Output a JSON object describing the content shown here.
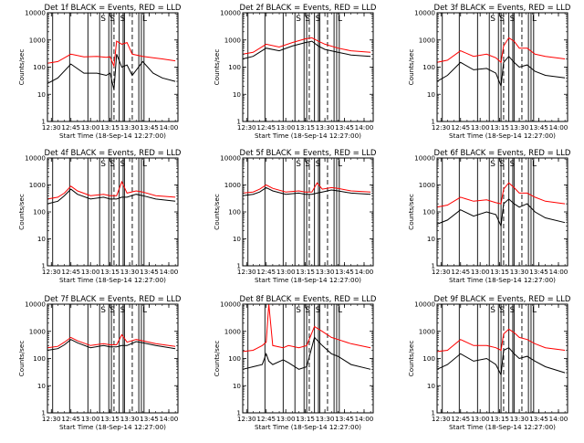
{
  "figure": {
    "colors": {
      "events": "#000000",
      "lld": "#ff0000",
      "axes": "#000000",
      "background": "#ffffff"
    },
    "layout": "3x3 grid of detector light curves"
  },
  "chart_data": [
    {
      "type": "line",
      "title": "Det 1f BLACK = Events, RED = LLD",
      "xlabel": "Start Time (18-Sep-14 12:27:00)",
      "ylabel": "Counts/sec",
      "xlim": [
        "12:27",
        "14:07"
      ],
      "ylim": [
        1,
        10000
      ],
      "yscale": "log",
      "xticks": [
        "12:30",
        "12:45",
        "13:00",
        "13:15",
        "13:30",
        "13:45",
        "14:00"
      ],
      "yticks": [
        "1",
        "10",
        "100",
        "1000",
        "10000"
      ],
      "annotations": [
        "S",
        "S",
        "S",
        "L"
      ],
      "series": [
        {
          "color": "#ff0000",
          "time": [
            "12:27",
            "12:35",
            "12:45",
            "12:55",
            "13:05",
            "13:12",
            "13:15",
            "13:18",
            "13:20",
            "13:24",
            "13:28",
            "13:32",
            "13:40",
            "13:48",
            "13:55",
            "14:05"
          ],
          "values": [
            140,
            160,
            300,
            240,
            250,
            230,
            240,
            110,
            900,
            700,
            800,
            300,
            250,
            220,
            200,
            170
          ]
        },
        {
          "color": "#000000",
          "time": [
            "12:27",
            "12:35",
            "12:45",
            "12:55",
            "13:05",
            "13:12",
            "13:15",
            "13:18",
            "13:20",
            "13:24",
            "13:28",
            "13:32",
            "13:40",
            "13:48",
            "13:55",
            "14:05"
          ],
          "values": [
            25,
            40,
            130,
            60,
            60,
            50,
            60,
            15,
            300,
            100,
            120,
            50,
            160,
            60,
            40,
            30
          ]
        }
      ]
    },
    {
      "type": "line",
      "title": "Det 2f BLACK = Events, RED = LLD",
      "xlabel": "Start Time (18-Sep-14 12:27:00)",
      "ylabel": "Counts/sec",
      "xlim": [
        "12:27",
        "14:07"
      ],
      "ylim": [
        1,
        10000
      ],
      "yscale": "log",
      "xticks": [
        "12:30",
        "12:45",
        "13:00",
        "13:15",
        "13:30",
        "13:45",
        "14:00"
      ],
      "yticks": [
        "1",
        "10",
        "100",
        "1000",
        "10000"
      ],
      "annotations": [
        "S",
        "S",
        "S",
        "L"
      ],
      "series": [
        {
          "color": "#ff0000",
          "time": [
            "12:27",
            "12:35",
            "12:45",
            "12:55",
            "13:05",
            "13:15",
            "13:20",
            "13:25",
            "13:30",
            "13:40",
            "13:50",
            "14:05"
          ],
          "values": [
            300,
            350,
            700,
            550,
            800,
            1100,
            1200,
            900,
            700,
            500,
            400,
            350
          ]
        },
        {
          "color": "#000000",
          "time": [
            "12:27",
            "12:35",
            "12:45",
            "12:55",
            "13:05",
            "13:15",
            "13:20",
            "13:25",
            "13:30",
            "13:40",
            "13:50",
            "14:05"
          ],
          "values": [
            200,
            250,
            500,
            400,
            600,
            800,
            900,
            600,
            450,
            350,
            280,
            250
          ]
        }
      ]
    },
    {
      "type": "line",
      "title": "Det 3f BLACK = Events, RED = LLD",
      "xlabel": "Start Time (18-Sep-14 12:27:00)",
      "ylabel": "Counts/sec",
      "xlim": [
        "12:27",
        "14:07"
      ],
      "ylim": [
        1,
        10000
      ],
      "yscale": "log",
      "xticks": [
        "12:30",
        "12:45",
        "13:00",
        "13:15",
        "13:30",
        "13:45",
        "14:00"
      ],
      "yticks": [
        "1",
        "10",
        "100",
        "1000",
        "10000"
      ],
      "annotations": [
        "S",
        "S",
        "S",
        "L"
      ],
      "series": [
        {
          "color": "#ff0000",
          "time": [
            "12:27",
            "12:35",
            "12:45",
            "12:55",
            "13:05",
            "13:12",
            "13:16",
            "13:18",
            "13:22",
            "13:26",
            "13:30",
            "13:36",
            "13:42",
            "13:50",
            "14:05"
          ],
          "values": [
            150,
            180,
            400,
            250,
            300,
            220,
            150,
            600,
            1200,
            900,
            500,
            500,
            300,
            250,
            200
          ]
        },
        {
          "color": "#000000",
          "time": [
            "12:27",
            "12:35",
            "12:45",
            "12:55",
            "13:05",
            "13:12",
            "13:16",
            "13:18",
            "13:22",
            "13:26",
            "13:30",
            "13:36",
            "13:42",
            "13:50",
            "14:05"
          ],
          "values": [
            30,
            50,
            150,
            80,
            90,
            60,
            20,
            150,
            250,
            150,
            100,
            120,
            70,
            50,
            40
          ]
        }
      ]
    },
    {
      "type": "line",
      "title": "Det 4f BLACK = Events, RED = LLD",
      "xlabel": "Start Time (18-Sep-14 12:27:00)",
      "ylabel": "Counts/sec",
      "xlim": [
        "12:27",
        "14:07"
      ],
      "ylim": [
        1,
        10000
      ],
      "yscale": "log",
      "xticks": [
        "12:30",
        "12:45",
        "13:00",
        "13:15",
        "13:30",
        "13:45",
        "14:00"
      ],
      "yticks": [
        "1",
        "10",
        "100",
        "1000",
        "10000"
      ],
      "annotations": [
        "S",
        "S",
        "S",
        "L"
      ],
      "series": [
        {
          "color": "#ff0000",
          "time": [
            "12:27",
            "12:35",
            "12:40",
            "12:45",
            "12:50",
            "13:00",
            "13:10",
            "13:15",
            "13:20",
            "13:24",
            "13:28",
            "13:35",
            "13:40",
            "13:50",
            "14:05"
          ],
          "values": [
            300,
            350,
            500,
            900,
            600,
            400,
            450,
            400,
            400,
            1300,
            500,
            600,
            550,
            400,
            350
          ]
        },
        {
          "color": "#000000",
          "time": [
            "12:27",
            "12:35",
            "12:40",
            "12:45",
            "12:50",
            "13:00",
            "13:10",
            "13:15",
            "13:20",
            "13:24",
            "13:28",
            "13:35",
            "13:40",
            "13:50",
            "14:05"
          ],
          "values": [
            200,
            250,
            400,
            700,
            450,
            300,
            350,
            300,
            300,
            350,
            350,
            450,
            400,
            300,
            250
          ]
        }
      ]
    },
    {
      "type": "line",
      "title": "Det 5f BLACK = Events, RED = LLD",
      "xlabel": "Start Time (18-Sep-14 12:27:00)",
      "ylabel": "Counts/sec",
      "xlim": [
        "12:27",
        "14:07"
      ],
      "ylim": [
        1,
        10000
      ],
      "yscale": "log",
      "xticks": [
        "12:30",
        "12:45",
        "13:00",
        "13:15",
        "13:30",
        "13:45",
        "14:00"
      ],
      "yticks": [
        "1",
        "10",
        "100",
        "1000",
        "10000"
      ],
      "annotations": [
        "S",
        "S",
        "S",
        "L"
      ],
      "series": [
        {
          "color": "#ff0000",
          "time": [
            "12:27",
            "12:35",
            "12:40",
            "12:45",
            "12:50",
            "13:00",
            "13:10",
            "13:15",
            "13:20",
            "13:24",
            "13:28",
            "13:35",
            "13:40",
            "13:50",
            "14:05"
          ],
          "values": [
            500,
            550,
            700,
            1000,
            750,
            550,
            600,
            550,
            550,
            1200,
            700,
            800,
            750,
            600,
            550
          ]
        },
        {
          "color": "#000000",
          "time": [
            "12:27",
            "12:35",
            "12:40",
            "12:45",
            "12:50",
            "13:00",
            "13:10",
            "13:15",
            "13:20",
            "13:24",
            "13:28",
            "13:35",
            "13:40",
            "13:50",
            "14:05"
          ],
          "values": [
            400,
            450,
            550,
            800,
            600,
            450,
            500,
            450,
            450,
            500,
            550,
            650,
            600,
            500,
            450
          ]
        }
      ]
    },
    {
      "type": "line",
      "title": "Det 6f BLACK = Events, RED = LLD",
      "xlabel": "Start Time (18-Sep-14 12:27:00)",
      "ylabel": "Counts/sec",
      "xlim": [
        "12:27",
        "14:07"
      ],
      "ylim": [
        1,
        10000
      ],
      "yscale": "log",
      "xticks": [
        "12:30",
        "12:45",
        "13:00",
        "13:15",
        "13:30",
        "13:45",
        "14:00"
      ],
      "yticks": [
        "1",
        "10",
        "100",
        "1000",
        "10000"
      ],
      "annotations": [
        "S",
        "S",
        "S",
        "L"
      ],
      "series": [
        {
          "color": "#ff0000",
          "time": [
            "12:27",
            "12:35",
            "12:45",
            "12:55",
            "13:05",
            "13:12",
            "13:16",
            "13:18",
            "13:22",
            "13:26",
            "13:30",
            "13:36",
            "13:42",
            "13:50",
            "14:05"
          ],
          "values": [
            150,
            180,
            350,
            250,
            280,
            220,
            200,
            700,
            1200,
            800,
            500,
            500,
            350,
            250,
            200
          ]
        },
        {
          "color": "#000000",
          "time": [
            "12:27",
            "12:35",
            "12:45",
            "12:55",
            "13:05",
            "13:12",
            "13:16",
            "13:18",
            "13:22",
            "13:26",
            "13:30",
            "13:36",
            "13:42",
            "13:50",
            "14:05"
          ],
          "values": [
            35,
            50,
            120,
            70,
            100,
            80,
            30,
            200,
            300,
            200,
            150,
            200,
            100,
            60,
            40
          ]
        }
      ]
    },
    {
      "type": "line",
      "title": "Det 7f BLACK = Events, RED = LLD",
      "xlabel": "Start Time (18-Sep-14 12:27:00)",
      "ylabel": "Counts/sec",
      "xlim": [
        "12:27",
        "14:07"
      ],
      "ylim": [
        1,
        10000
      ],
      "yscale": "log",
      "xticks": [
        "12:30",
        "12:45",
        "13:00",
        "13:15",
        "13:30",
        "13:45",
        "14:00"
      ],
      "yticks": [
        "1",
        "10",
        "100",
        "1000",
        "10000"
      ],
      "annotations": [
        "S",
        "S",
        "S",
        "L"
      ],
      "series": [
        {
          "color": "#ff0000",
          "time": [
            "12:27",
            "12:35",
            "12:40",
            "12:45",
            "12:50",
            "13:00",
            "13:10",
            "13:15",
            "13:20",
            "13:24",
            "13:28",
            "13:35",
            "13:40",
            "13:50",
            "14:05"
          ],
          "values": [
            250,
            280,
            400,
            600,
            450,
            300,
            350,
            320,
            320,
            750,
            400,
            500,
            450,
            350,
            280
          ]
        },
        {
          "color": "#000000",
          "time": [
            "12:27",
            "12:35",
            "12:40",
            "12:45",
            "12:50",
            "13:00",
            "13:10",
            "13:15",
            "13:20",
            "13:24",
            "13:28",
            "13:35",
            "13:40",
            "13:50",
            "14:05"
          ],
          "values": [
            200,
            230,
            320,
            500,
            380,
            250,
            300,
            270,
            270,
            300,
            300,
            420,
            380,
            300,
            230
          ]
        }
      ]
    },
    {
      "type": "line",
      "title": "Det 8f BLACK = Events, RED = LLD",
      "xlabel": "Start Time (18-Sep-14 12:27:00)",
      "ylabel": "Counts/sec",
      "xlim": [
        "12:27",
        "14:07"
      ],
      "ylim": [
        1,
        10000
      ],
      "yscale": "log",
      "xticks": [
        "12:30",
        "12:45",
        "13:00",
        "13:15",
        "13:30",
        "13:45",
        "14:00"
      ],
      "yticks": [
        "1",
        "10",
        "100",
        "1000",
        "10000"
      ],
      "annotations": [
        "S",
        "S",
        "S",
        "L"
      ],
      "series": [
        {
          "color": "#ff0000",
          "time": [
            "12:27",
            "12:35",
            "12:42",
            "12:45",
            "12:47",
            "12:50",
            "12:58",
            "13:02",
            "13:10",
            "13:16",
            "13:22",
            "13:28",
            "13:35",
            "13:40",
            "13:50",
            "14:05"
          ],
          "values": [
            180,
            200,
            300,
            400,
            10000,
            300,
            250,
            300,
            250,
            300,
            1500,
            1000,
            600,
            500,
            350,
            250
          ]
        },
        {
          "color": "#000000",
          "time": [
            "12:27",
            "12:35",
            "12:42",
            "12:45",
            "12:47",
            "12:50",
            "12:58",
            "13:02",
            "13:10",
            "13:16",
            "13:22",
            "13:28",
            "13:35",
            "13:40",
            "13:50",
            "14:05"
          ],
          "values": [
            40,
            50,
            60,
            150,
            80,
            60,
            90,
            70,
            40,
            50,
            600,
            300,
            150,
            120,
            60,
            40
          ]
        }
      ]
    },
    {
      "type": "line",
      "title": "Det 9f BLACK = Events, RED = LLD",
      "xlabel": "Start Time (18-Sep-14 12:27:00)",
      "ylabel": "Counts/sec",
      "xlim": [
        "12:27",
        "14:07"
      ],
      "ylim": [
        1,
        10000
      ],
      "yscale": "log",
      "xticks": [
        "12:30",
        "12:45",
        "13:00",
        "13:15",
        "13:30",
        "13:45",
        "14:00"
      ],
      "yticks": [
        "1",
        "10",
        "100",
        "1000",
        "10000"
      ],
      "annotations": [
        "S",
        "S",
        "S",
        "L"
      ],
      "series": [
        {
          "color": "#ff0000",
          "time": [
            "12:27",
            "12:35",
            "12:45",
            "12:55",
            "13:05",
            "13:12",
            "13:16",
            "13:18",
            "13:22",
            "13:26",
            "13:30",
            "13:36",
            "13:42",
            "13:50",
            "14:05"
          ],
          "values": [
            180,
            200,
            500,
            300,
            300,
            250,
            200,
            800,
            1200,
            900,
            600,
            500,
            350,
            250,
            200
          ]
        },
        {
          "color": "#000000",
          "time": [
            "12:27",
            "12:35",
            "12:45",
            "12:55",
            "13:05",
            "13:12",
            "13:16",
            "13:18",
            "13:22",
            "13:26",
            "13:30",
            "13:36",
            "13:42",
            "13:50",
            "14:05"
          ],
          "values": [
            40,
            60,
            150,
            80,
            100,
            60,
            25,
            200,
            250,
            150,
            100,
            120,
            80,
            50,
            30
          ]
        }
      ]
    }
  ]
}
